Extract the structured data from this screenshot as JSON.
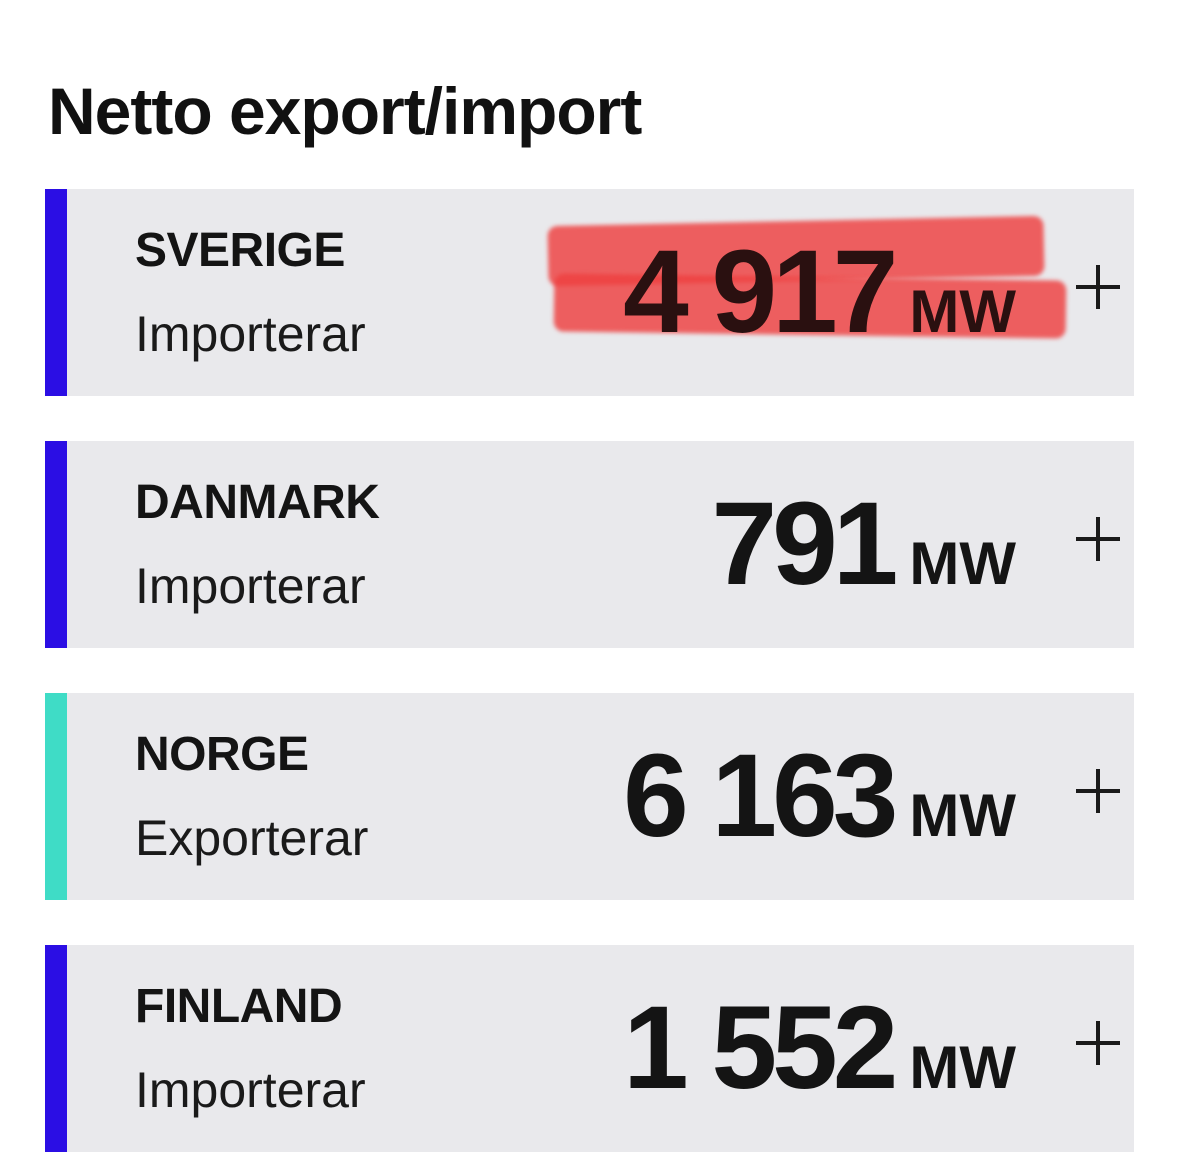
{
  "page": {
    "title": "Netto export/import"
  },
  "colors": {
    "import_stripe": "#2b0ee4",
    "export_stripe": "#3fdcc6",
    "card_bg": "#e9e9ec",
    "highlight": "#ee4040"
  },
  "cards": [
    {
      "country": "SVERIGE",
      "status": "Importerar",
      "value": "4 917",
      "unit": "MW",
      "stripe_color": "#2b0ee4",
      "icon": "plus-icon"
    },
    {
      "country": "DANMARK",
      "status": "Importerar",
      "value": "791",
      "unit": "MW",
      "stripe_color": "#2b0ee4",
      "icon": "plus-icon"
    },
    {
      "country": "NORGE",
      "status": "Exporterar",
      "value": "6 163",
      "unit": "MW",
      "stripe_color": "#3fdcc6",
      "icon": "plus-icon"
    },
    {
      "country": "FINLAND",
      "status": "Importerar",
      "value": "1 552",
      "unit": "MW",
      "stripe_color": "#2b0ee4",
      "icon": "plus-icon"
    }
  ]
}
